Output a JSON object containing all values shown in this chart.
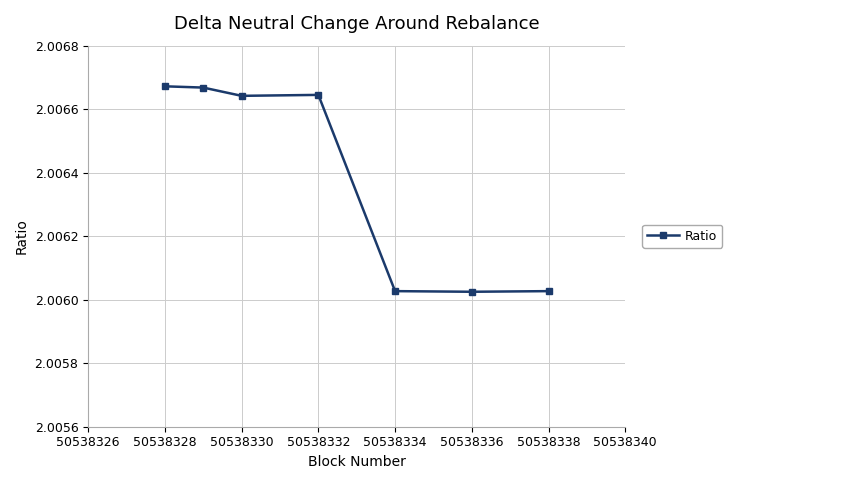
{
  "title": "Delta Neutral Change Around Rebalance",
  "xlabel": "Block Number",
  "ylabel": "Ratio",
  "x_values": [
    50538328,
    50538329,
    50538330,
    50538332,
    50538334,
    50538336,
    50538338
  ],
  "y_values": [
    2.006672,
    2.006668,
    2.006642,
    2.006645,
    2.006027,
    2.006025,
    2.006027
  ],
  "line_color": "#1B3A6B",
  "marker": "s",
  "marker_size": 4,
  "line_width": 1.8,
  "xlim": [
    50538326,
    50538340
  ],
  "ylim": [
    2.0056,
    2.0068
  ],
  "yticks": [
    2.0056,
    2.0058,
    2.006,
    2.0062,
    2.0064,
    2.0066,
    2.0068
  ],
  "xticks": [
    50538326,
    50538328,
    50538330,
    50538332,
    50538334,
    50538336,
    50538338,
    50538340
  ],
  "legend_label": "Ratio",
  "background_color": "#ffffff",
  "grid_color": "#cccccc",
  "title_fontsize": 13,
  "axis_label_fontsize": 10,
  "tick_fontsize": 9
}
